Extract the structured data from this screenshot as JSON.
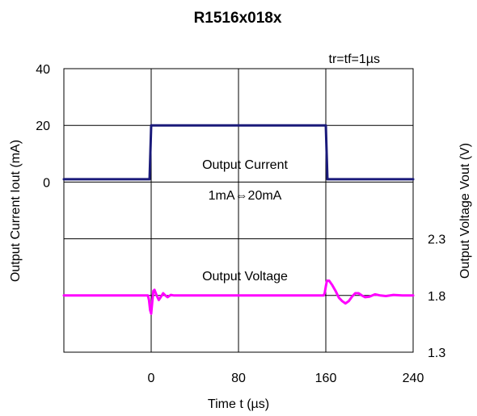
{
  "chart_data": {
    "type": "line",
    "title": "R1516x018x",
    "xlabel": "Time t (µs)",
    "ylabel_left": "Output Current Iout (mA)",
    "ylabel_right": "Output Voltage Vout (V)",
    "annotation_top_right": "tr=tf=1µs",
    "x_ticks": [
      "0",
      "80",
      "160",
      "240"
    ],
    "xlim": [
      -80,
      240
    ],
    "y_left_ticks": [
      "40",
      "20",
      "0"
    ],
    "y_right_ticks": [
      "2.3",
      "1.8",
      "1.3"
    ],
    "grid": true,
    "series": [
      {
        "name": "Output Current",
        "sublabel": "1mA⇔20mA",
        "color": "#1a1a7a",
        "axis": "left",
        "points": [
          [
            -80,
            1
          ],
          [
            -1.5,
            1
          ],
          [
            0,
            20
          ],
          [
            160,
            20
          ],
          [
            161.5,
            1
          ],
          [
            240,
            1
          ]
        ]
      },
      {
        "name": "Output Voltage",
        "color": "#ff00ff",
        "axis": "right",
        "points": [
          [
            -80,
            1.8
          ],
          [
            -3,
            1.8
          ],
          [
            -2,
            1.76
          ],
          [
            -1,
            1.67
          ],
          [
            0,
            1.64
          ],
          [
            1,
            1.74
          ],
          [
            2,
            1.84
          ],
          [
            3,
            1.85
          ],
          [
            5,
            1.8
          ],
          [
            7,
            1.76
          ],
          [
            9,
            1.79
          ],
          [
            11,
            1.82
          ],
          [
            13,
            1.8
          ],
          [
            15,
            1.785
          ],
          [
            18,
            1.805
          ],
          [
            21,
            1.8
          ],
          [
            30,
            1.8
          ],
          [
            158,
            1.8
          ],
          [
            159,
            1.82
          ],
          [
            160,
            1.88
          ],
          [
            161,
            1.93
          ],
          [
            163,
            1.93
          ],
          [
            166,
            1.89
          ],
          [
            169,
            1.84
          ],
          [
            172,
            1.78
          ],
          [
            175,
            1.75
          ],
          [
            178,
            1.73
          ],
          [
            181,
            1.75
          ],
          [
            184,
            1.79
          ],
          [
            187,
            1.82
          ],
          [
            190,
            1.82
          ],
          [
            193,
            1.8
          ],
          [
            196,
            1.785
          ],
          [
            200,
            1.79
          ],
          [
            205,
            1.81
          ],
          [
            210,
            1.8
          ],
          [
            215,
            1.795
          ],
          [
            222,
            1.805
          ],
          [
            230,
            1.8
          ],
          [
            240,
            1.8
          ]
        ]
      }
    ]
  }
}
